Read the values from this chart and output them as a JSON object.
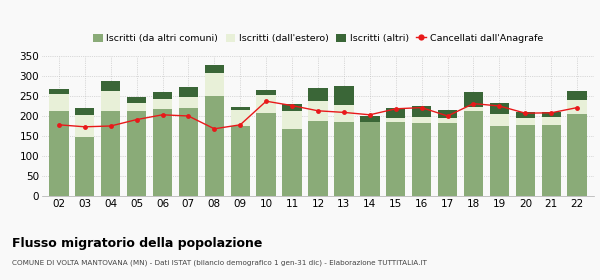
{
  "years": [
    "02",
    "03",
    "04",
    "05",
    "06",
    "07",
    "08",
    "09",
    "10",
    "11",
    "12",
    "13",
    "14",
    "15",
    "16",
    "17",
    "18",
    "19",
    "20",
    "21",
    "22"
  ],
  "iscritti_altri_comuni": [
    213,
    148,
    212,
    213,
    217,
    220,
    250,
    176,
    207,
    168,
    187,
    185,
    185,
    186,
    183,
    183,
    213,
    176,
    178,
    178,
    204
  ],
  "iscritti_estero": [
    42,
    55,
    50,
    20,
    25,
    28,
    58,
    38,
    45,
    45,
    50,
    42,
    0,
    10,
    15,
    13,
    9,
    28,
    18,
    20,
    35
  ],
  "iscritti_altri": [
    13,
    17,
    25,
    14,
    18,
    24,
    20,
    8,
    14,
    17,
    34,
    48,
    14,
    24,
    27,
    20,
    38,
    28,
    14,
    11,
    24
  ],
  "cancellati": [
    178,
    173,
    175,
    191,
    203,
    200,
    168,
    178,
    237,
    226,
    213,
    209,
    203,
    218,
    221,
    200,
    231,
    225,
    207,
    208,
    221
  ],
  "color_altri_comuni": "#8aab78",
  "color_estero": "#e8f0d8",
  "color_altri": "#3a6637",
  "color_cancellati": "#e8191a",
  "legend_labels": [
    "Iscritti (da altri comuni)",
    "Iscritti (dall'estero)",
    "Iscritti (altri)",
    "Cancellati dall'Anagrafe"
  ],
  "title": "Flusso migratorio della popolazione",
  "subtitle": "COMUNE DI VOLTA MANTOVANA (MN) - Dati ISTAT (bilancio demografico 1 gen-31 dic) - Elaborazione TUTTITALIA.IT",
  "ylim": [
    0,
    350
  ],
  "yticks": [
    0,
    50,
    100,
    150,
    200,
    250,
    300,
    350
  ],
  "bg_color": "#f9f9f9"
}
